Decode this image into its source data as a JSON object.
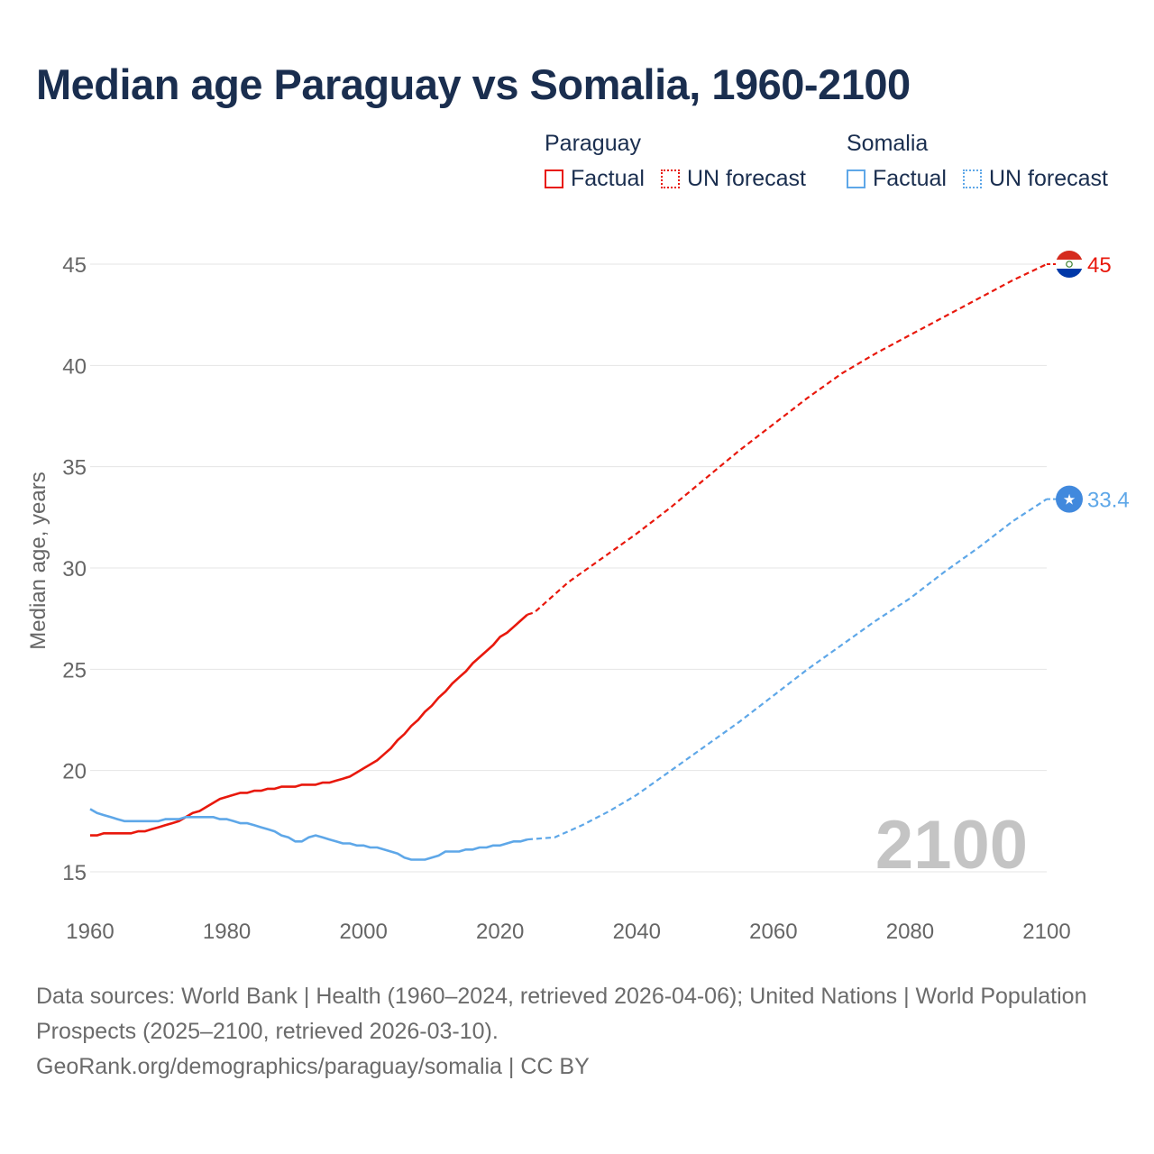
{
  "colors": {
    "paraguay": "#e8180c",
    "somalia": "#5ea7e8",
    "title": "#1a2e4f",
    "grid": "#e4e4e4",
    "axis_text": "#666666",
    "watermark": "#c4c4c4"
  },
  "legend": {
    "paraguay": {
      "name": "Paraguay",
      "factual": "Factual",
      "forecast": "UN forecast"
    },
    "somalia": {
      "name": "Somalia",
      "factual": "Factual",
      "forecast": "UN forecast"
    }
  },
  "footer": {
    "line1": "Data sources: World Bank | Health (1960–2024, retrieved 2026-04-06); United Nations | World Population Prospects (2025–2100, retrieved 2026-03-10).",
    "line2": "GeoRank.org/demographics/paraguay/somalia | CC BY"
  },
  "chart_data": {
    "type": "line",
    "title": "Median age Paraguay vs Somalia, 1960-2100",
    "xlabel": "",
    "ylabel": "Median age, years",
    "xlim": [
      1960,
      2100
    ],
    "ylim": [
      15,
      45
    ],
    "x_ticks": [
      1960,
      1980,
      2000,
      2020,
      2040,
      2060,
      2080,
      2100
    ],
    "y_ticks": [
      15,
      20,
      25,
      30,
      35,
      40,
      45
    ],
    "grid": true,
    "legend_position": "top-right",
    "year_watermark": "2100",
    "series": [
      {
        "name": "Paraguay",
        "flag_icon": "paraguay-flag-icon",
        "end_label": "45",
        "factual": [
          [
            1960,
            16.8
          ],
          [
            1961,
            16.8
          ],
          [
            1962,
            16.9
          ],
          [
            1963,
            16.9
          ],
          [
            1964,
            16.9
          ],
          [
            1965,
            16.9
          ],
          [
            1966,
            16.9
          ],
          [
            1967,
            17.0
          ],
          [
            1968,
            17.0
          ],
          [
            1969,
            17.1
          ],
          [
            1970,
            17.2
          ],
          [
            1971,
            17.3
          ],
          [
            1972,
            17.4
          ],
          [
            1973,
            17.5
          ],
          [
            1974,
            17.7
          ],
          [
            1975,
            17.9
          ],
          [
            1976,
            18.0
          ],
          [
            1977,
            18.2
          ],
          [
            1978,
            18.4
          ],
          [
            1979,
            18.6
          ],
          [
            1980,
            18.7
          ],
          [
            1981,
            18.8
          ],
          [
            1982,
            18.9
          ],
          [
            1983,
            18.9
          ],
          [
            1984,
            19.0
          ],
          [
            1985,
            19.0
          ],
          [
            1986,
            19.1
          ],
          [
            1987,
            19.1
          ],
          [
            1988,
            19.2
          ],
          [
            1989,
            19.2
          ],
          [
            1990,
            19.2
          ],
          [
            1991,
            19.3
          ],
          [
            1992,
            19.3
          ],
          [
            1993,
            19.3
          ],
          [
            1994,
            19.4
          ],
          [
            1995,
            19.4
          ],
          [
            1996,
            19.5
          ],
          [
            1997,
            19.6
          ],
          [
            1998,
            19.7
          ],
          [
            1999,
            19.9
          ],
          [
            2000,
            20.1
          ],
          [
            2001,
            20.3
          ],
          [
            2002,
            20.5
          ],
          [
            2003,
            20.8
          ],
          [
            2004,
            21.1
          ],
          [
            2005,
            21.5
          ],
          [
            2006,
            21.8
          ],
          [
            2007,
            22.2
          ],
          [
            2008,
            22.5
          ],
          [
            2009,
            22.9
          ],
          [
            2010,
            23.2
          ],
          [
            2011,
            23.6
          ],
          [
            2012,
            23.9
          ],
          [
            2013,
            24.3
          ],
          [
            2014,
            24.6
          ],
          [
            2015,
            24.9
          ],
          [
            2016,
            25.3
          ],
          [
            2017,
            25.6
          ],
          [
            2018,
            25.9
          ],
          [
            2019,
            26.2
          ],
          [
            2020,
            26.6
          ],
          [
            2021,
            26.8
          ],
          [
            2022,
            27.1
          ],
          [
            2023,
            27.4
          ],
          [
            2024,
            27.7
          ]
        ],
        "forecast": [
          [
            2024,
            27.7
          ],
          [
            2025,
            27.8
          ],
          [
            2030,
            29.3
          ],
          [
            2035,
            30.5
          ],
          [
            2040,
            31.7
          ],
          [
            2045,
            33.0
          ],
          [
            2050,
            34.4
          ],
          [
            2055,
            35.8
          ],
          [
            2060,
            37.1
          ],
          [
            2065,
            38.4
          ],
          [
            2070,
            39.6
          ],
          [
            2075,
            40.6
          ],
          [
            2080,
            41.5
          ],
          [
            2085,
            42.4
          ],
          [
            2090,
            43.3
          ],
          [
            2095,
            44.2
          ],
          [
            2100,
            45.0
          ]
        ]
      },
      {
        "name": "Somalia",
        "flag_icon": "somalia-flag-icon",
        "end_label": "33.4",
        "factual": [
          [
            1960,
            18.1
          ],
          [
            1961,
            17.9
          ],
          [
            1962,
            17.8
          ],
          [
            1963,
            17.7
          ],
          [
            1964,
            17.6
          ],
          [
            1965,
            17.5
          ],
          [
            1966,
            17.5
          ],
          [
            1967,
            17.5
          ],
          [
            1968,
            17.5
          ],
          [
            1969,
            17.5
          ],
          [
            1970,
            17.5
          ],
          [
            1971,
            17.6
          ],
          [
            1972,
            17.6
          ],
          [
            1973,
            17.6
          ],
          [
            1974,
            17.7
          ],
          [
            1975,
            17.7
          ],
          [
            1976,
            17.7
          ],
          [
            1977,
            17.7
          ],
          [
            1978,
            17.7
          ],
          [
            1979,
            17.6
          ],
          [
            1980,
            17.6
          ],
          [
            1981,
            17.5
          ],
          [
            1982,
            17.4
          ],
          [
            1983,
            17.4
          ],
          [
            1984,
            17.3
          ],
          [
            1985,
            17.2
          ],
          [
            1986,
            17.1
          ],
          [
            1987,
            17.0
          ],
          [
            1988,
            16.8
          ],
          [
            1989,
            16.7
          ],
          [
            1990,
            16.5
          ],
          [
            1991,
            16.5
          ],
          [
            1992,
            16.7
          ],
          [
            1993,
            16.8
          ],
          [
            1994,
            16.7
          ],
          [
            1995,
            16.6
          ],
          [
            1996,
            16.5
          ],
          [
            1997,
            16.4
          ],
          [
            1998,
            16.4
          ],
          [
            1999,
            16.3
          ],
          [
            2000,
            16.3
          ],
          [
            2001,
            16.2
          ],
          [
            2002,
            16.2
          ],
          [
            2003,
            16.1
          ],
          [
            2004,
            16.0
          ],
          [
            2005,
            15.9
          ],
          [
            2006,
            15.7
          ],
          [
            2007,
            15.6
          ],
          [
            2008,
            15.6
          ],
          [
            2009,
            15.6
          ],
          [
            2010,
            15.7
          ],
          [
            2011,
            15.8
          ],
          [
            2012,
            16.0
          ],
          [
            2013,
            16.0
          ],
          [
            2014,
            16.0
          ],
          [
            2015,
            16.1
          ],
          [
            2016,
            16.1
          ],
          [
            2017,
            16.2
          ],
          [
            2018,
            16.2
          ],
          [
            2019,
            16.3
          ],
          [
            2020,
            16.3
          ],
          [
            2021,
            16.4
          ],
          [
            2022,
            16.5
          ],
          [
            2023,
            16.5
          ],
          [
            2024,
            16.6
          ]
        ],
        "forecast": [
          [
            2024,
            16.6
          ],
          [
            2028,
            16.7
          ],
          [
            2032,
            17.3
          ],
          [
            2036,
            18.0
          ],
          [
            2040,
            18.8
          ],
          [
            2045,
            20.0
          ],
          [
            2050,
            21.2
          ],
          [
            2055,
            22.4
          ],
          [
            2060,
            23.7
          ],
          [
            2065,
            25.0
          ],
          [
            2070,
            26.2
          ],
          [
            2075,
            27.4
          ],
          [
            2080,
            28.5
          ],
          [
            2085,
            29.8
          ],
          [
            2090,
            31.0
          ],
          [
            2095,
            32.3
          ],
          [
            2100,
            33.4
          ]
        ]
      }
    ]
  }
}
